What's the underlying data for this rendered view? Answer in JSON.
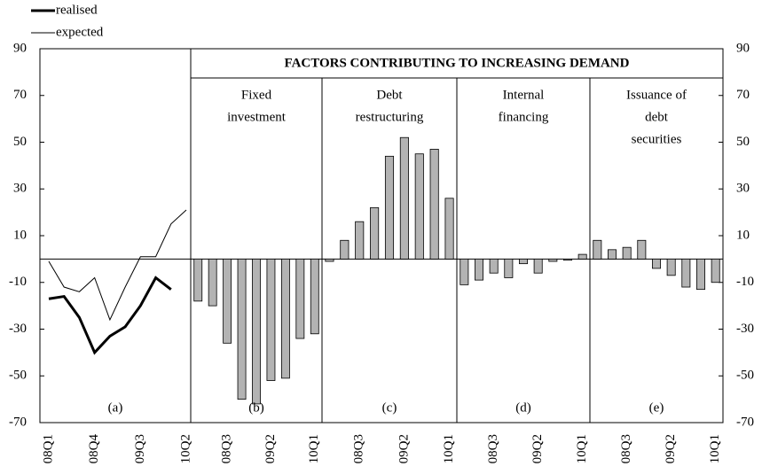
{
  "chart_data": {
    "type": "panels",
    "title": "FACTORS CONTRIBUTING TO INCREASING DEMAND",
    "ylim": [
      -70,
      90
    ],
    "yticks": [
      -70,
      -50,
      -30,
      -10,
      10,
      30,
      50,
      70,
      90
    ],
    "legend": "top-left",
    "bar_color": "#b3b3b3",
    "panels": [
      {
        "type": "line",
        "label": "(a)",
        "categories": [
          "08Q1",
          null,
          null,
          "08Q4",
          null,
          null,
          "09Q3",
          null,
          null,
          "10Q2"
        ],
        "series": [
          {
            "name": "realised",
            "color": "#000000",
            "width": 3,
            "values": [
              -17,
              -16,
              -25,
              -40,
              -33,
              -29,
              -20,
              -8,
              -13,
              null
            ]
          },
          {
            "name": "expected",
            "color": "#000000",
            "width": 1,
            "values": [
              -1,
              -12,
              -14,
              -8,
              -26,
              -12,
              1,
              1,
              15,
              21
            ]
          }
        ]
      },
      {
        "type": "bar",
        "label": "(b)",
        "title": [
          "Fixed",
          "investment"
        ],
        "categories": [
          null,
          null,
          "08Q3",
          null,
          null,
          "09Q2",
          null,
          null,
          "10Q1"
        ],
        "values": [
          -18,
          -20,
          -36,
          -60,
          -62,
          -52,
          -51,
          -34,
          -32
        ]
      },
      {
        "type": "bar",
        "label": "(c)",
        "title": [
          "Debt",
          "restructuring"
        ],
        "categories": [
          null,
          null,
          "08Q3",
          null,
          null,
          "09Q2",
          null,
          null,
          "10Q1"
        ],
        "values": [
          -1,
          8,
          16,
          22,
          44,
          52,
          45,
          47,
          26
        ]
      },
      {
        "type": "bar",
        "label": "(d)",
        "title": [
          "Internal",
          "financing"
        ],
        "categories": [
          null,
          null,
          "08Q3",
          null,
          null,
          "09Q2",
          null,
          null,
          "10Q1"
        ],
        "values": [
          -11,
          -9,
          -6,
          -8,
          -2,
          -6,
          -1,
          -0.5,
          2
        ]
      },
      {
        "type": "bar",
        "label": "(e)",
        "title": [
          "Issuance of",
          "debt",
          "securities"
        ],
        "categories": [
          null,
          null,
          "08Q3",
          null,
          null,
          "09Q2",
          null,
          null,
          "10Q1"
        ],
        "values": [
          8,
          4,
          5,
          8,
          -4,
          -7,
          -12,
          -13,
          -10
        ]
      }
    ]
  }
}
